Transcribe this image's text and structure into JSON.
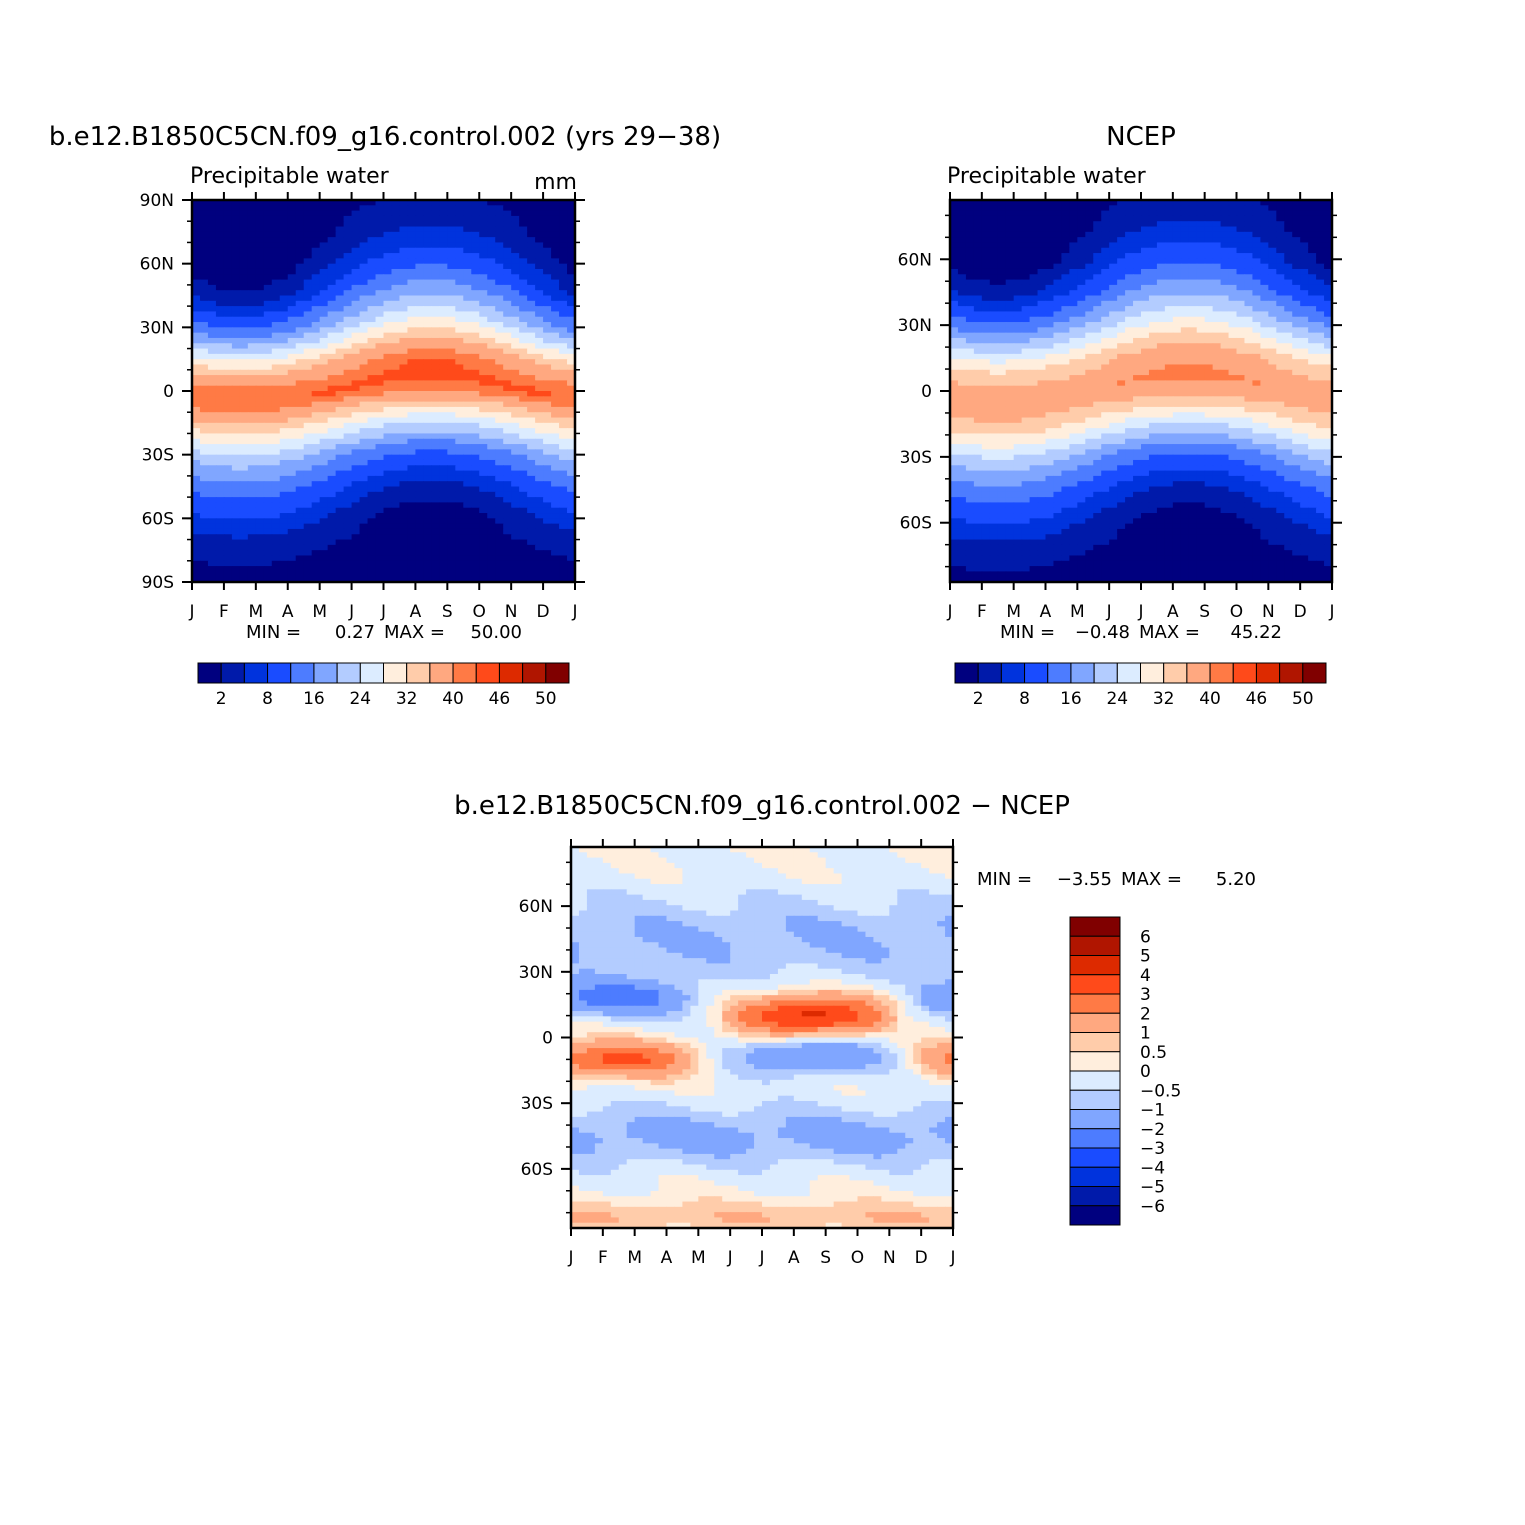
{
  "chart_data": [
    {
      "type": "heatmap",
      "title": "b.e12.B1850C5CN.f09_g16.control.002 (yrs 29−38)",
      "subtitle": "Precipitable water",
      "units": "mm",
      "x_ticks": [
        "J",
        "F",
        "M",
        "A",
        "M",
        "J",
        "J",
        "A",
        "S",
        "O",
        "N",
        "D",
        "J"
      ],
      "y_ticks": [
        "90N",
        "60N",
        "30N",
        "0",
        "30S",
        "60S",
        "90S"
      ],
      "ylim": [
        -90,
        90
      ],
      "stats": {
        "min_label": "MIN =",
        "min": "0.27",
        "max_label": "MAX =",
        "max": "50.00"
      },
      "levels": [
        2,
        5,
        8,
        12,
        16,
        20,
        24,
        28,
        32,
        36,
        40,
        43,
        46,
        48,
        50
      ],
      "level_labels": [
        "2",
        "8",
        "16",
        "24",
        "32",
        "40",
        "46",
        "50"
      ],
      "colors": [
        "#00007f",
        "#001aaa",
        "#0033dd",
        "#1a4cff",
        "#4d7cff",
        "#80a6ff",
        "#b3ccff",
        "#dcecff",
        "#ffeedd",
        "#ffccaa",
        "#ffa880",
        "#ff7a45",
        "#ff4a1a",
        "#dd2a00",
        "#b01500",
        "#800000"
      ],
      "profile": {
        "lat": [
          -90,
          -75,
          -60,
          -45,
          -30,
          -15,
          0,
          15,
          30,
          45,
          60,
          75,
          90
        ],
        "base": [
          0.5,
          1.5,
          4,
          9,
          17,
          30,
          44,
          36,
          21,
          11,
          5,
          2,
          0.8
        ],
        "season_amp": [
          -0.3,
          -1,
          -3,
          -4,
          -4,
          -3,
          0,
          5,
          7,
          7,
          5,
          3,
          1.5
        ]
      }
    },
    {
      "type": "heatmap",
      "title": "NCEP",
      "subtitle": "Precipitable water",
      "x_ticks": [
        "J",
        "F",
        "M",
        "A",
        "M",
        "J",
        "J",
        "A",
        "S",
        "O",
        "N",
        "D",
        "J"
      ],
      "y_ticks": [
        "60N",
        "30N",
        "0",
        "30S",
        "60S"
      ],
      "ylim": [
        -87,
        87
      ],
      "stats": {
        "min_label": "MIN =",
        "min": "−0.48",
        "max_label": "MAX =",
        "max": "45.22"
      },
      "levels": [
        2,
        5,
        8,
        12,
        16,
        20,
        24,
        28,
        32,
        36,
        40,
        43,
        46,
        48,
        50
      ],
      "level_labels": [
        "2",
        "8",
        "16",
        "24",
        "32",
        "40",
        "46",
        "50"
      ],
      "colors": [
        "#00007f",
        "#001aaa",
        "#0033dd",
        "#1a4cff",
        "#4d7cff",
        "#80a6ff",
        "#b3ccff",
        "#dcecff",
        "#ffeedd",
        "#ffccaa",
        "#ffa880",
        "#ff7a45",
        "#ff4a1a",
        "#dd2a00",
        "#b01500",
        "#800000"
      ],
      "profile": {
        "lat": [
          -90,
          -75,
          -60,
          -45,
          -30,
          -15,
          0,
          15,
          30,
          45,
          60,
          75,
          90
        ],
        "base": [
          0.5,
          1.5,
          4,
          9,
          17,
          30,
          40,
          34,
          21,
          11,
          5,
          2,
          0.8
        ],
        "season_amp": [
          -0.3,
          -1,
          -3,
          -4,
          -4,
          -3,
          1,
          4,
          6,
          6,
          5,
          3,
          1.5
        ]
      }
    },
    {
      "type": "heatmap",
      "title": "b.e12.B1850C5CN.f09_g16.control.002 − NCEP",
      "x_ticks": [
        "J",
        "F",
        "M",
        "A",
        "M",
        "J",
        "J",
        "A",
        "S",
        "O",
        "N",
        "D",
        "J"
      ],
      "y_ticks": [
        "60N",
        "30N",
        "0",
        "30S",
        "60S"
      ],
      "ylim": [
        -87,
        87
      ],
      "stats": {
        "min_label": "MIN =",
        "min": "−3.55",
        "max_label": "MAX =",
        "max": "5.20"
      },
      "levels": [
        -6,
        -5,
        -4,
        -3,
        -2,
        -1,
        -0.5,
        0,
        0.5,
        1,
        2,
        3,
        4,
        5,
        6
      ],
      "level_labels": [
        "−6",
        "−5",
        "−4",
        "−3",
        "−2",
        "−1",
        "−0.5",
        "0",
        "0.5",
        "1",
        "2",
        "3",
        "4",
        "5",
        "6"
      ],
      "colors": [
        "#00007f",
        "#001aaa",
        "#0033dd",
        "#1a4cff",
        "#4d7cff",
        "#80a6ff",
        "#b3ccff",
        "#dcecff",
        "#ffeedd",
        "#ffccaa",
        "#ffa880",
        "#ff7a45",
        "#ff4a1a",
        "#dd2a00",
        "#b01500",
        "#800000"
      ]
    }
  ]
}
